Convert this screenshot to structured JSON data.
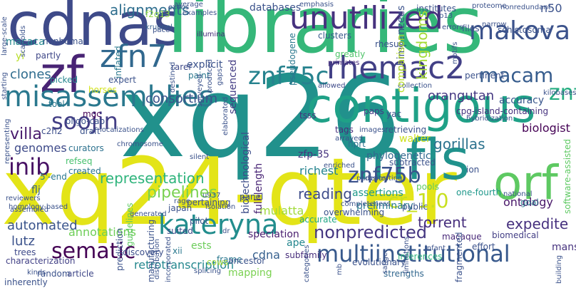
{
  "words": [
    {
      "text": "cdnas",
      "color": "#3e4a89"
    },
    {
      "text": "libraries",
      "color": "#35b779"
    },
    {
      "text": "xq26",
      "color": "#21918c"
    },
    {
      "text": "xq24-qter",
      "color": "#e3e418"
    },
    {
      "text": "contigous",
      "color": "#1fa187"
    },
    {
      "text": "infls",
      "color": "#20928c"
    },
    {
      "text": "zf",
      "color": "#482374"
    },
    {
      "text": "misassemblies",
      "color": "#2a788e"
    },
    {
      "text": "unutilized",
      "color": "#46327e"
    },
    {
      "text": "makova",
      "color": "#3b528b"
    },
    {
      "text": "zfn7",
      "color": "#31688e"
    },
    {
      "text": "rhemac2",
      "color": "#424086"
    },
    {
      "text": "znf75c",
      "color": "#26828e"
    },
    {
      "text": "orf",
      "color": "#5ec962"
    },
    {
      "text": "soojin",
      "color": "#433e85"
    },
    {
      "text": "inib",
      "color": "#471164"
    },
    {
      "text": "kateryna",
      "color": "#228d8d"
    },
    {
      "text": "sematic",
      "color": "#440154"
    },
    {
      "text": "multiinstitutional",
      "color": "#38598c"
    },
    {
      "text": "znf75b",
      "color": "#3b528b"
    },
    {
      "text": "znf75a",
      "color": "#26ad81"
    },
    {
      "text": "cr_1.0",
      "color": "#c8e020"
    },
    {
      "text": "macam",
      "color": "#365c8d"
    },
    {
      "text": "villa",
      "color": "#481a6c"
    },
    {
      "text": "representation",
      "color": "#2fb47c"
    },
    {
      "text": "pipelines",
      "color": "#7ad151"
    },
    {
      "text": "consortium",
      "color": "#3b528b"
    },
    {
      "text": "alignments",
      "color": "#2e6e8e"
    },
    {
      "text": "databases",
      "color": "#3b528b"
    },
    {
      "text": "macaca",
      "color": "#23898e"
    },
    {
      "text": "clones",
      "color": "#2f6c8e"
    },
    {
      "text": "orangutan",
      "color": "#453882"
    },
    {
      "text": "gorillas",
      "color": "#2c728e"
    },
    {
      "text": "walter",
      "color": "#cde11d"
    },
    {
      "text": "genomes",
      "color": "#3e4a89"
    },
    {
      "text": "automated",
      "color": "#3a548c"
    },
    {
      "text": "lutz",
      "color": "#3b528b"
    },
    {
      "text": "annotations",
      "color": "#6ece58"
    },
    {
      "text": "sematic",
      "color": "#440154"
    },
    {
      "text": "nonpredicted",
      "color": "#453781"
    },
    {
      "text": "reading",
      "color": "#3e4c8a"
    },
    {
      "text": "mulatta",
      "color": "#a0da39"
    },
    {
      "text": "cdna",
      "color": "#355f8d"
    },
    {
      "text": "richest",
      "color": "#25848e"
    },
    {
      "text": "assertions",
      "color": "#1f998a"
    },
    {
      "text": "phylogenetic",
      "color": "#31688e"
    },
    {
      "text": "ontology",
      "color": "#481769"
    },
    {
      "text": "accuracy",
      "color": "#39568c"
    },
    {
      "text": "biologist",
      "color": "#440154"
    },
    {
      "text": "expedite",
      "color": "#46307e"
    },
    {
      "text": "torrent",
      "color": "#472f7d"
    },
    {
      "text": "retrotranscription",
      "color": "#24878e"
    },
    {
      "text": "mapping",
      "color": "#7ad151"
    },
    {
      "text": "n50",
      "color": "#3b528b"
    },
    {
      "text": "mansoni",
      "color": "#46327e"
    },
    {
      "text": "inflated",
      "color": "#2a788e"
    },
    {
      "text": "flj",
      "color": "#355f8d"
    },
    {
      "text": "zfp-35",
      "color": "#46337f"
    },
    {
      "text": "full-length",
      "color": "#482475"
    },
    {
      "text": "biotechnological",
      "color": "#3d4d8a"
    },
    {
      "text": "sequenced",
      "color": "#433d84"
    },
    {
      "text": "paint",
      "color": "#2a788e"
    },
    {
      "text": "explicit",
      "color": "#3b528b"
    },
    {
      "text": "rarer",
      "color": "#3e4a89"
    },
    {
      "text": "5'-end",
      "color": "#2a778e"
    },
    {
      "text": "curators",
      "color": "#2c718e"
    },
    {
      "text": "refseq",
      "color": "#48c16e"
    },
    {
      "text": "created",
      "color": "#2a768e"
    },
    {
      "text": "one-fourth",
      "color": "#1f988b"
    },
    {
      "text": "preliminary",
      "color": "#297b8e"
    },
    {
      "text": "goal",
      "color": "#29798e"
    },
    {
      "text": "ape",
      "color": "#24868e"
    },
    {
      "text": "speciation",
      "color": "#481c6e"
    },
    {
      "text": "ests",
      "color": "#6ccd5a"
    },
    {
      "text": "discovery",
      "color": "#3c4f8a"
    },
    {
      "text": "xii",
      "color": "#2a788e"
    },
    {
      "text": "subfamily",
      "color": "#472d7b"
    },
    {
      "text": "evolutionary",
      "color": "#3b528b"
    },
    {
      "text": "inferences",
      "color": "#2fb47c"
    },
    {
      "text": "characterization",
      "color": "#424186"
    },
    {
      "text": "trees",
      "color": "#3e4989"
    },
    {
      "text": "article",
      "color": "#3f4788"
    },
    {
      "text": "random",
      "color": "#3b528b"
    },
    {
      "text": "frame",
      "color": "#2a788e"
    },
    {
      "text": "strengths",
      "color": "#31678e"
    },
    {
      "text": "macaque",
      "color": "#482878"
    },
    {
      "text": "biomedical",
      "color": "#433e85"
    },
    {
      "text": "suited",
      "color": "#3e4c8a"
    },
    {
      "text": "accurate",
      "color": "#21a685"
    },
    {
      "text": "tags",
      "color": "#472d7b"
    },
    {
      "text": "subtracted",
      "color": "#3b528b"
    },
    {
      "text": "hprt",
      "color": "#2c728e"
    },
    {
      "text": "pools",
      "color": "#5ec962"
    },
    {
      "text": "cows",
      "color": "#a0da39"
    },
    {
      "text": "kruppel",
      "color": "#355f8d"
    },
    {
      "text": "illumina",
      "color": "#472c7a"
    },
    {
      "text": "clusters",
      "color": "#38598c"
    },
    {
      "text": "rhesus",
      "color": "#3b528b"
    },
    {
      "text": "chimpanzees",
      "color": "#a5db36"
    },
    {
      "text": "kingdoms",
      "color": "#2c728e"
    },
    {
      "text": "primates",
      "color": "#472d7b"
    },
    {
      "text": "greatly",
      "color": "#50c46a"
    },
    {
      "text": "pseudogene",
      "color": "#2a788e"
    },
    {
      "text": "allowed",
      "color": "#3e4a89"
    },
    {
      "text": "horses",
      "color": "#d2e21b"
    },
    {
      "text": "expert",
      "color": "#3b528b"
    },
    {
      "text": "picked",
      "color": "#24868e"
    },
    {
      "text": "nonhuman",
      "color": "#3b528b"
    },
    {
      "text": "partly",
      "color": "#3f4788"
    },
    {
      "text": "yi",
      "color": "#b8de29"
    },
    {
      "text": "tool",
      "color": "#2a788e"
    },
    {
      "text": "mgc",
      "color": "#440154"
    },
    {
      "text": "draft",
      "color": "#3b528b"
    },
    {
      "text": "c2h2",
      "color": "#3d4e8a"
    },
    {
      "text": "oligo-cap",
      "color": "#3b528b"
    },
    {
      "text": "japan",
      "color": "#3b528b"
    },
    {
      "text": "tsss",
      "color": "#46337f"
    },
    {
      "text": "paps",
      "color": "#433e85"
    },
    {
      "text": "yac",
      "color": "#3b528b"
    },
    {
      "text": "average",
      "color": "#3b528b"
    },
    {
      "text": "pace",
      "color": "#3b528b"
    },
    {
      "text": "emphasis",
      "color": "#3b528b"
    },
    {
      "text": "f2q13",
      "color": "#90d743"
    },
    {
      "text": "institutes",
      "color": "#3b528b"
    },
    {
      "text": "p13",
      "color": "#2a788e"
    },
    {
      "text": "errors",
      "color": "#3b528b"
    },
    {
      "text": "narrow",
      "color": "#3b528b"
    },
    {
      "text": "files",
      "color": "#3b528b"
    },
    {
      "text": "schistosoma",
      "color": "#3b528b"
    },
    {
      "text": "proteome",
      "color": "#3b528b"
    },
    {
      "text": "nonredundant",
      "color": "#3b528b"
    },
    {
      "text": "cpg-island-containing",
      "color": "#46327e"
    },
    {
      "text": "pertinent",
      "color": "#3b528b"
    },
    {
      "text": "collection",
      "color": "#3b528b"
    },
    {
      "text": "retrieving",
      "color": "#3b528b"
    },
    {
      "text": "images",
      "color": "#3b528b"
    },
    {
      "text": "arrayed",
      "color": "#3b528b"
    },
    {
      "text": "software-assisted",
      "color": "#5ec962"
    },
    {
      "text": "homology-based",
      "color": "#3b528b"
    },
    {
      "text": "assembled",
      "color": "#3b528b"
    },
    {
      "text": "depositing",
      "color": "#3b528b"
    },
    {
      "text": "public",
      "color": "#3b528b"
    },
    {
      "text": "national",
      "color": "#3b528b"
    },
    {
      "text": "effort",
      "color": "#3b528b"
    },
    {
      "text": "infant",
      "color": "#3b528b"
    },
    {
      "text": "fragmented",
      "color": "#3b528b"
    },
    {
      "text": "building",
      "color": "#3b528b"
    },
    {
      "text": "overwhelming",
      "color": "#3b528b"
    },
    {
      "text": "manufacturing",
      "color": "#3b528b"
    },
    {
      "text": "pilot",
      "color": "#3b528b"
    },
    {
      "text": "prediction",
      "color": "#3b528b"
    },
    {
      "text": "guidelines",
      "color": "#5ec962"
    },
    {
      "text": "pertaining",
      "color": "#3b528b"
    },
    {
      "text": "isolation",
      "color": "#3b528b"
    },
    {
      "text": "rage",
      "color": "#3b528b"
    },
    {
      "text": "splicing",
      "color": "#3b528b"
    },
    {
      "text": "generated",
      "color": "#3b528b"
    },
    {
      "text": "completeness",
      "color": "#3b528b"
    },
    {
      "text": "ancestor",
      "color": "#3b528b"
    },
    {
      "text": "inherently",
      "color": "#3b528b"
    },
    {
      "text": "scaffolds",
      "color": "#3b528b"
    },
    {
      "text": "large-scale",
      "color": "#3b528b"
    },
    {
      "text": "starting",
      "color": "#3b528b"
    },
    {
      "text": "surveyed",
      "color": "#3b528b"
    },
    {
      "text": "reviewers",
      "color": "#3b528b"
    },
    {
      "text": "localizations",
      "color": "#3b528b"
    },
    {
      "text": "chromosome",
      "color": "#3b528b"
    },
    {
      "text": "produced",
      "color": "#3b528b"
    },
    {
      "text": "silent",
      "color": "#3b528b"
    },
    {
      "text": "elaborated",
      "color": "#3b528b"
    },
    {
      "text": "u937",
      "color": "#3b528b"
    },
    {
      "text": "panel",
      "color": "#3b528b"
    },
    {
      "text": "dr",
      "color": "#3b528b"
    },
    {
      "text": "sanger",
      "color": "#3b528b"
    },
    {
      "text": "limitations",
      "color": "#3b528b"
    },
    {
      "text": "categories",
      "color": "#3b528b"
    },
    {
      "text": "comparison",
      "color": "#3b528b"
    },
    {
      "text": "hybridization",
      "color": "#b8de29"
    },
    {
      "text": "motifs",
      "color": "#3b528b"
    },
    {
      "text": "kilobases",
      "color": "#3b528b"
    },
    {
      "text": "parasite",
      "color": "#3b528b"
    },
    {
      "text": "enriched",
      "color": "#3b528b"
    },
    {
      "text": "ion",
      "color": "#3b528b"
    },
    {
      "text": "kinds",
      "color": "#3b528b"
    },
    {
      "text": "mb",
      "color": "#3b528b"
    },
    {
      "text": "gaps",
      "color": "#3b528b"
    },
    {
      "text": "exons",
      "color": "#3b528b"
    },
    {
      "text": "examples",
      "color": "#3b528b"
    },
    {
      "text": "destined",
      "color": "#3b528b"
    },
    {
      "text": "representing",
      "color": "#3b528b"
    },
    {
      "text": "distribution",
      "color": "#3b528b"
    },
    {
      "text": "incorporated",
      "color": "#3b528b"
    },
    {
      "text": "total",
      "color": "#3b528b"
    },
    {
      "text": "putatively",
      "color": "#3b528b"
    },
    {
      "text": "record",
      "color": "#3b528b"
    },
    {
      "text": "cosmid",
      "color": "#3b528b"
    },
    {
      "text": "orthology",
      "color": "#3b528b"
    },
    {
      "text": "wide",
      "color": "#3b528b"
    }
  ]
}
